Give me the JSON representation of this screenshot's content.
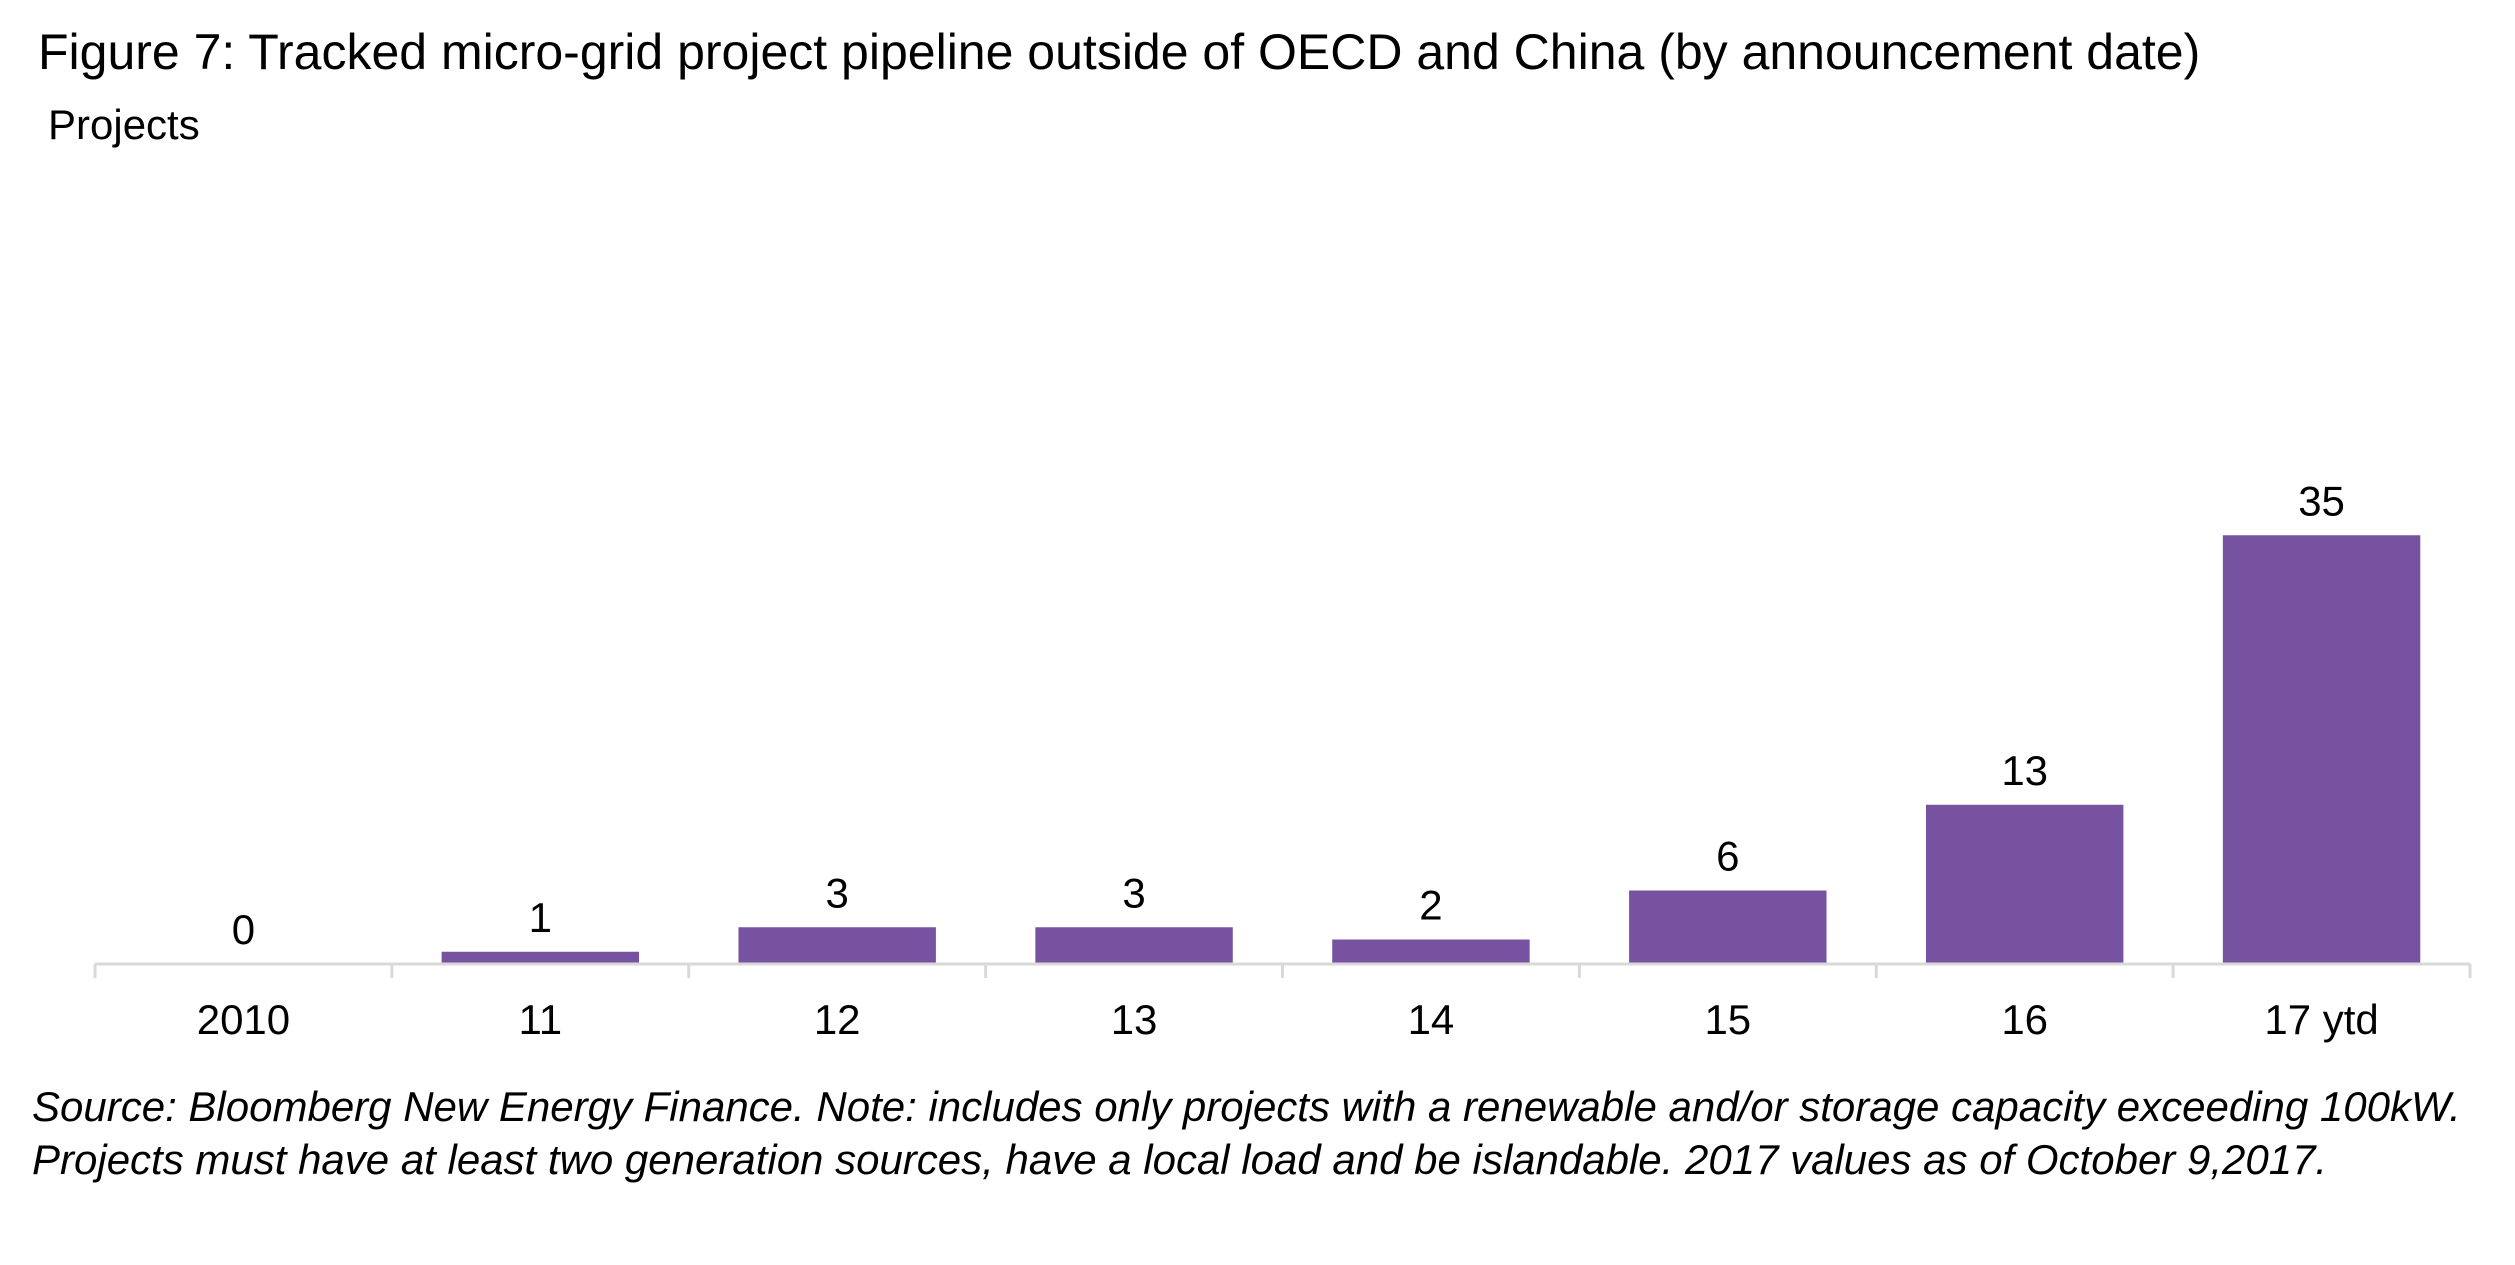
{
  "title": "Figure 7: Tracked micro-grid project pipeline outside of OECD and China (by announcement date)",
  "footnote": "Source: Bloomberg New Energy Finance. Note: includes only projects with a renewable and/or storage capacity exceeding 100kW. Projects must have at least two generation sources, have a local load and be islandable. 2017 values as of October 9,2017.",
  "colors": {
    "bar": "#7652A0",
    "axis": "#D9D9D9",
    "text": "#000000"
  },
  "chart_data": {
    "type": "bar",
    "title": "Figure 7: Tracked micro-grid project pipeline outside of OECD and China (by announcement date)",
    "ylabel": "Projects",
    "xlabel": "",
    "categories": [
      "2010",
      "11",
      "12",
      "13",
      "14",
      "15",
      "16",
      "17 ytd"
    ],
    "values": [
      0,
      1,
      3,
      3,
      2,
      6,
      13,
      35
    ],
    "data_labels": [
      "0",
      "1",
      "3",
      "3",
      "2",
      "6",
      "13",
      "35"
    ],
    "ylim": [
      0,
      35
    ],
    "grid": false,
    "legend": "none"
  }
}
